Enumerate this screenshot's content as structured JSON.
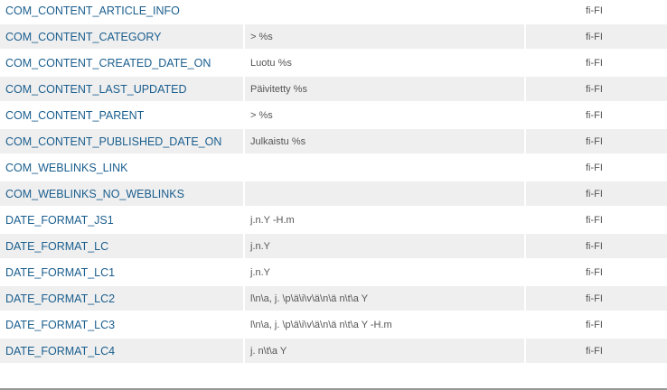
{
  "rows": [
    {
      "key": "COM_CONTENT_ARTICLE_INFO",
      "value": "",
      "lang": "fi-FI"
    },
    {
      "key": "COM_CONTENT_CATEGORY",
      "value": "> %s",
      "lang": "fi-FI"
    },
    {
      "key": "COM_CONTENT_CREATED_DATE_ON",
      "value": "Luotu %s",
      "lang": "fi-FI"
    },
    {
      "key": "COM_CONTENT_LAST_UPDATED",
      "value": "Päivitetty %s",
      "lang": "fi-FI"
    },
    {
      "key": "COM_CONTENT_PARENT",
      "value": "> %s",
      "lang": "fi-FI"
    },
    {
      "key": "COM_CONTENT_PUBLISHED_DATE_ON",
      "value": "Julkaistu %s",
      "lang": "fi-FI"
    },
    {
      "key": "COM_WEBLINKS_LINK",
      "value": "",
      "lang": "fi-FI"
    },
    {
      "key": "COM_WEBLINKS_NO_WEBLINKS",
      "value": "",
      "lang": "fi-FI"
    },
    {
      "key": "DATE_FORMAT_JS1",
      "value": "j.n.Y -H.m",
      "lang": "fi-FI"
    },
    {
      "key": "DATE_FORMAT_LC",
      "value": "j.n.Y",
      "lang": "fi-FI"
    },
    {
      "key": "DATE_FORMAT_LC1",
      "value": "j.n.Y",
      "lang": "fi-FI"
    },
    {
      "key": "DATE_FORMAT_LC2",
      "value": "l\\n\\a, j. \\p\\ä\\i\\v\\ä\\n\\ä n\\t\\a Y",
      "lang": "fi-FI"
    },
    {
      "key": "DATE_FORMAT_LC3",
      "value": "l\\n\\a, j. \\p\\ä\\i\\v\\ä\\n\\ä n\\t\\a Y -H.m",
      "lang": "fi-FI"
    },
    {
      "key": "DATE_FORMAT_LC4",
      "value": "j. n\\t\\a Y",
      "lang": "fi-FI"
    }
  ]
}
